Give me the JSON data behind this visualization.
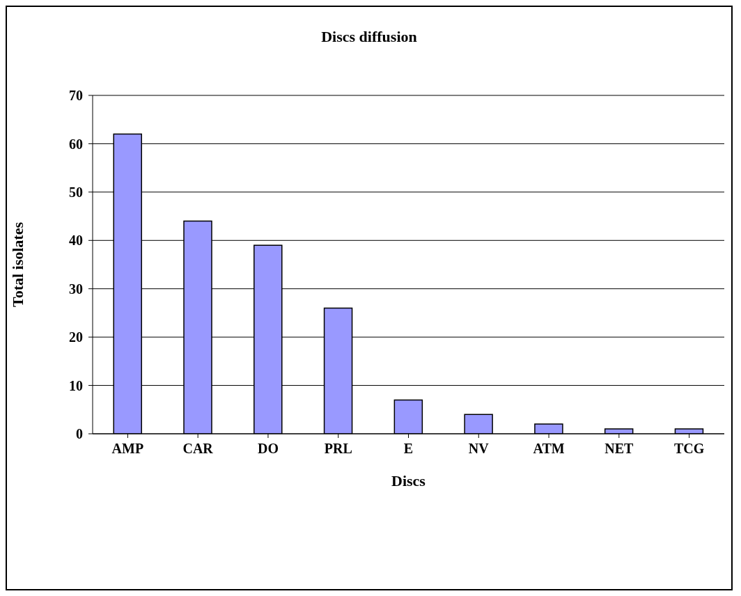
{
  "chart_data": {
    "type": "bar",
    "title": "Discs diffusion",
    "xlabel": "Discs",
    "ylabel": "Total isolates",
    "categories": [
      "AMP",
      "CAR",
      "DO",
      "PRL",
      "E",
      "NV",
      "ATM",
      "NET",
      "TCG"
    ],
    "values": [
      62,
      44,
      39,
      26,
      7,
      4,
      2,
      1,
      1
    ],
    "color": "#9999ff",
    "ylim": [
      0,
      70
    ],
    "yticks": [
      0,
      10,
      20,
      30,
      40,
      50,
      60,
      70
    ],
    "grid": "y"
  }
}
